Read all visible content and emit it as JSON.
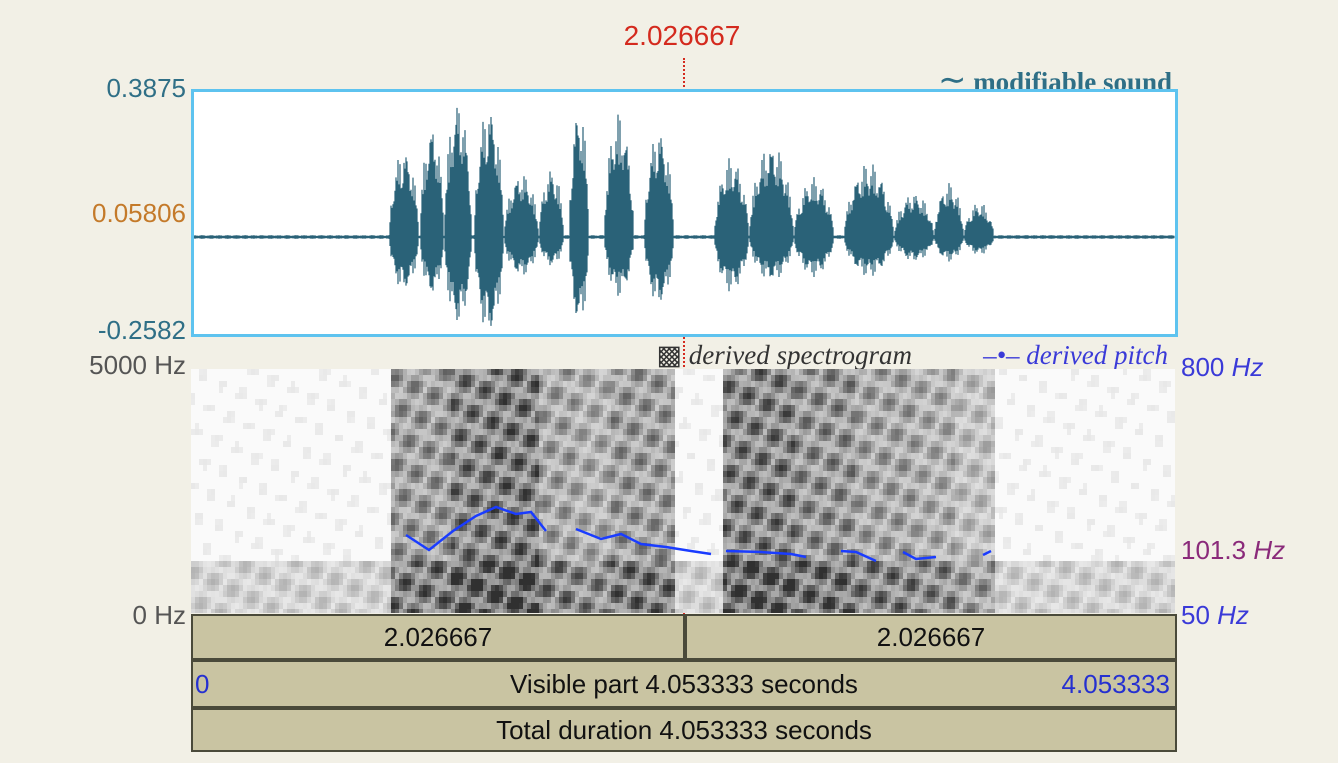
{
  "cursor": {
    "time_label": "2.026667",
    "color": "#d42a1e"
  },
  "waveform": {
    "title": "modifiable sound",
    "title_icon": "tilde-icon",
    "y_max": "0.3875",
    "y_mid": "0.05806",
    "y_min": "-0.2582",
    "color": "#2a6278",
    "border_color": "#5ec3ef"
  },
  "spectrogram": {
    "legend_icon": "checker-square-icon",
    "legend_label": "derived spectrogram",
    "freq_max": "5000 Hz",
    "freq_min": "0 Hz"
  },
  "pitch": {
    "legend_label": "derived pitch",
    "legend_icon": "line-dot-icon",
    "axis_max_value": "800",
    "axis_cursor_value": "101.3",
    "axis_min_value": "50",
    "unit": "Hz",
    "color": "#1a3cff"
  },
  "time_bars": {
    "left_half_label": "2.026667",
    "right_half_label": "2.026667",
    "visible_start": "0",
    "visible_label": "Visible part 4.053333 seconds",
    "visible_end": "4.053333",
    "total_label": "Total duration 4.053333 seconds"
  }
}
